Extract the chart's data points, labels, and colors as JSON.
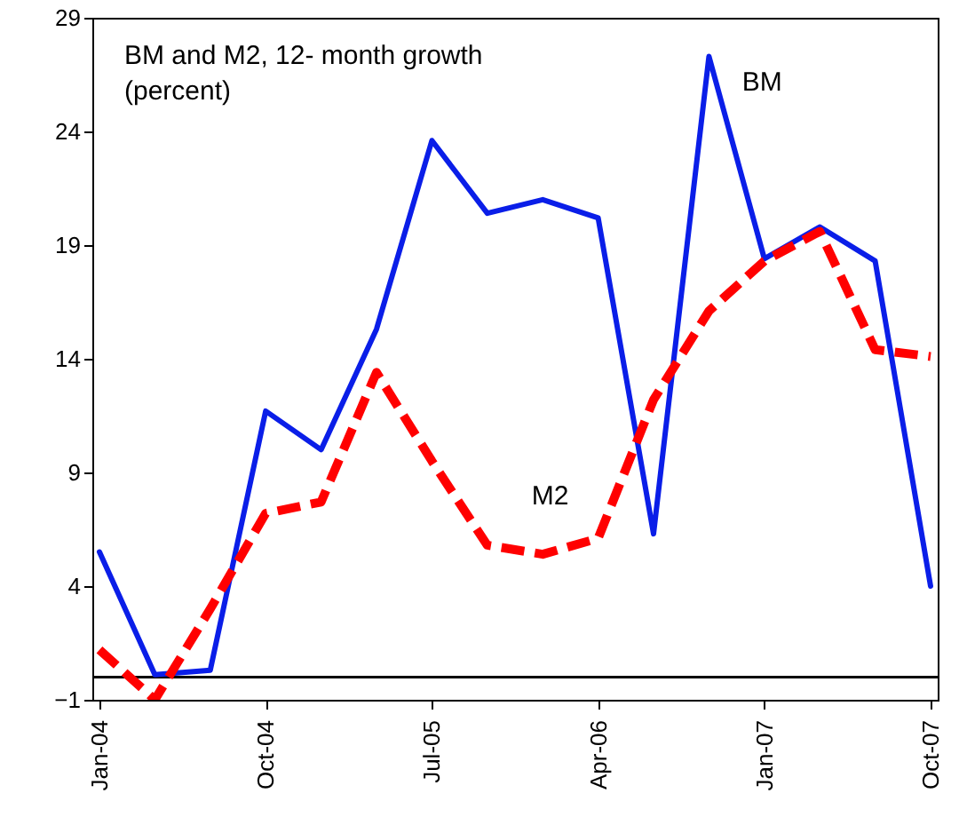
{
  "chart_data": {
    "type": "line",
    "title": "BM and M2, 12- month growth (percent)",
    "categories": [
      "Jan-04",
      null,
      null,
      "Oct-04",
      null,
      null,
      "Jul-05",
      null,
      null,
      "Apr-06",
      null,
      null,
      "Jan-07",
      null,
      null,
      "Oct-07"
    ],
    "series": [
      {
        "name": "BM",
        "color": "#0a1ee8",
        "line_style": "solid",
        "values": [
          5.5,
          0.1,
          0.3,
          11.7,
          10.0,
          15.3,
          23.6,
          20.4,
          21.0,
          20.2,
          6.3,
          27.3,
          18.4,
          19.8,
          18.3,
          4.0
        ]
      },
      {
        "name": "M2",
        "color": "#ff0000",
        "line_style": "dashed",
        "values": [
          1.2,
          -1.0,
          3.0,
          7.2,
          7.7,
          13.4,
          9.5,
          5.8,
          5.4,
          6.1,
          12.2,
          16.1,
          18.3,
          19.6,
          14.4,
          14.1
        ]
      }
    ],
    "ylim": [
      -1,
      29
    ],
    "yticks": [
      -1,
      4,
      9,
      14,
      19,
      24,
      29
    ],
    "ref_lines": [
      {
        "axis": "y",
        "value": 0,
        "color": "#000000"
      }
    ],
    "grid": false,
    "legend": false,
    "marker": "none"
  }
}
